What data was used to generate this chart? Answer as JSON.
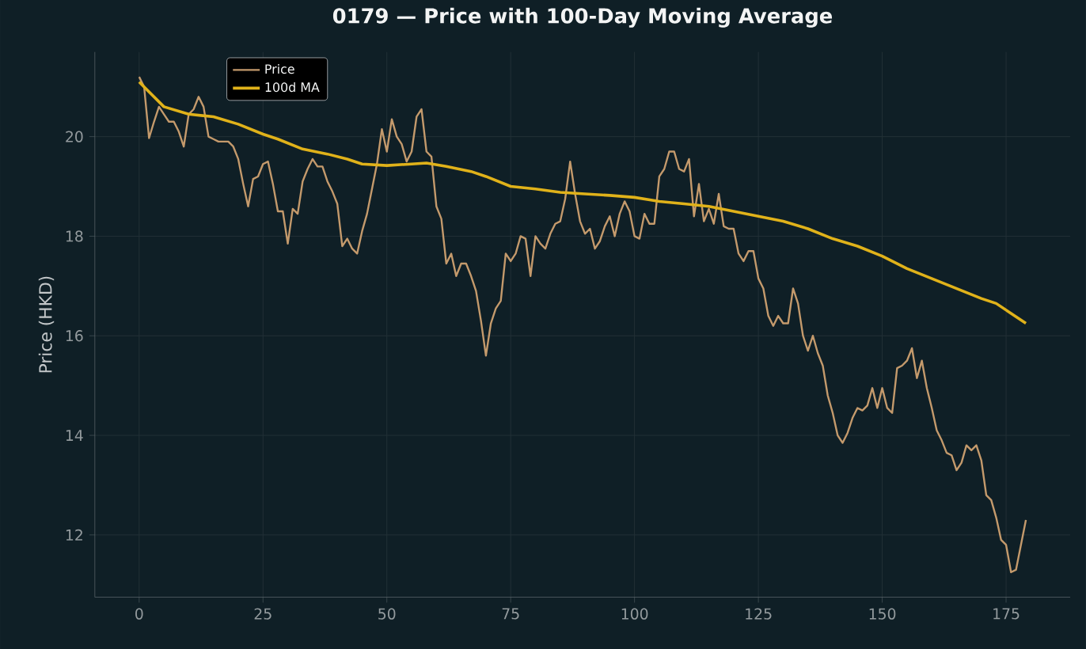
{
  "chart_data": {
    "type": "line",
    "title": "0179 — Price with 100-Day Moving Average",
    "ylabel": "Price (HKD)",
    "xlim": [
      -8.95,
      187.95
    ],
    "ylim": [
      10.75,
      21.7
    ],
    "xticks": [
      0,
      25,
      50,
      75,
      100,
      125,
      150,
      175
    ],
    "yticks": [
      12,
      14,
      16,
      18,
      20
    ],
    "grid": true,
    "legend": "top left",
    "line_style": "solid",
    "marker": "none",
    "series": [
      {
        "name": "Price",
        "color": "#c49a6c",
        "x": [
          0,
          1,
          2,
          3,
          4,
          5,
          6,
          7,
          8,
          9,
          10,
          11,
          12,
          13,
          14,
          15,
          16,
          17,
          18,
          19,
          20,
          21,
          22,
          23,
          24,
          25,
          26,
          27,
          28,
          29,
          30,
          31,
          32,
          33,
          34,
          35,
          36,
          37,
          38,
          39,
          40,
          41,
          42,
          43,
          44,
          45,
          46,
          47,
          48,
          49,
          50,
          51,
          52,
          53,
          54,
          55,
          56,
          57,
          58,
          59,
          60,
          61,
          62,
          63,
          64,
          65,
          66,
          67,
          68,
          69,
          70,
          71,
          72,
          73,
          74,
          75,
          76,
          77,
          78,
          79,
          80,
          81,
          82,
          83,
          84,
          85,
          86,
          87,
          88,
          89,
          90,
          91,
          92,
          93,
          94,
          95,
          96,
          97,
          98,
          99,
          100,
          101,
          102,
          103,
          104,
          105,
          106,
          107,
          108,
          109,
          110,
          111,
          112,
          113,
          114,
          115,
          116,
          117,
          118,
          119,
          120,
          121,
          122,
          123,
          124,
          125,
          126,
          127,
          128,
          129,
          130,
          131,
          132,
          133,
          134,
          135,
          136,
          137,
          138,
          139,
          140,
          141,
          142,
          143,
          144,
          145,
          146,
          147,
          148,
          149,
          150,
          151,
          152,
          153,
          154,
          155,
          156,
          157,
          158,
          159,
          160,
          161,
          162,
          163,
          164,
          165,
          166,
          167,
          168,
          169,
          170,
          171,
          172,
          173,
          174,
          175,
          176,
          177,
          178,
          179
        ],
        "values": [
          21.2,
          21.0,
          19.97,
          20.3,
          20.6,
          20.45,
          20.3,
          20.3,
          20.1,
          19.8,
          20.45,
          20.55,
          20.8,
          20.6,
          20.0,
          19.95,
          19.9,
          19.9,
          19.9,
          19.8,
          19.55,
          19.05,
          18.6,
          19.15,
          19.2,
          19.45,
          19.5,
          19.05,
          18.5,
          18.5,
          17.85,
          18.55,
          18.45,
          19.1,
          19.35,
          19.55,
          19.4,
          19.4,
          19.1,
          18.9,
          18.65,
          17.8,
          17.95,
          17.75,
          17.65,
          18.1,
          18.45,
          18.95,
          19.45,
          20.15,
          19.7,
          20.35,
          20.0,
          19.85,
          19.5,
          19.7,
          20.4,
          20.55,
          19.7,
          19.6,
          18.6,
          18.35,
          17.45,
          17.65,
          17.2,
          17.45,
          17.45,
          17.2,
          16.9,
          16.3,
          15.6,
          16.25,
          16.55,
          16.7,
          17.65,
          17.5,
          17.65,
          18.0,
          17.95,
          17.2,
          18.0,
          17.85,
          17.75,
          18.05,
          18.25,
          18.3,
          18.75,
          19.5,
          18.85,
          18.3,
          18.05,
          18.15,
          17.75,
          17.9,
          18.2,
          18.4,
          18.0,
          18.45,
          18.7,
          18.5,
          18.0,
          17.95,
          18.45,
          18.25,
          18.25,
          19.2,
          19.35,
          19.7,
          19.7,
          19.35,
          19.3,
          19.55,
          18.4,
          19.05,
          18.3,
          18.55,
          18.25,
          18.85,
          18.2,
          18.15,
          18.15,
          17.65,
          17.5,
          17.7,
          17.7,
          17.15,
          16.95,
          16.4,
          16.2,
          16.4,
          16.25,
          16.25,
          16.95,
          16.65,
          16.0,
          15.7,
          16.0,
          15.65,
          15.4,
          14.8,
          14.45,
          14.0,
          13.85,
          14.05,
          14.35,
          14.55,
          14.5,
          14.6,
          14.95,
          14.55,
          14.95,
          14.55,
          14.45,
          15.35,
          15.4,
          15.5,
          15.75,
          15.15,
          15.5,
          14.95,
          14.55,
          14.1,
          13.9,
          13.65,
          13.6,
          13.3,
          13.45,
          13.8,
          13.7,
          13.8,
          13.5,
          12.8,
          12.7,
          12.35,
          11.9,
          11.8,
          11.25,
          11.3,
          11.8,
          12.3
        ]
      },
      {
        "name": "100d MA",
        "color": "#e0b21a",
        "x": [
          0,
          5,
          10,
          15,
          20,
          25,
          28,
          33,
          38,
          42,
          45,
          50,
          55,
          58,
          62,
          67,
          70,
          75,
          80,
          85,
          90,
          95,
          100,
          105,
          110,
          115,
          120,
          125,
          130,
          135,
          140,
          145,
          150,
          155,
          160,
          165,
          170,
          173,
          176,
          179
        ],
        "values": [
          21.1,
          20.6,
          20.45,
          20.4,
          20.25,
          20.05,
          19.95,
          19.75,
          19.65,
          19.55,
          19.45,
          19.42,
          19.45,
          19.47,
          19.4,
          19.3,
          19.2,
          19.0,
          18.95,
          18.88,
          18.85,
          18.82,
          18.78,
          18.7,
          18.65,
          18.6,
          18.5,
          18.4,
          18.3,
          18.15,
          17.95,
          17.8,
          17.6,
          17.35,
          17.15,
          16.95,
          16.75,
          16.65,
          16.45,
          16.25
        ]
      }
    ]
  }
}
